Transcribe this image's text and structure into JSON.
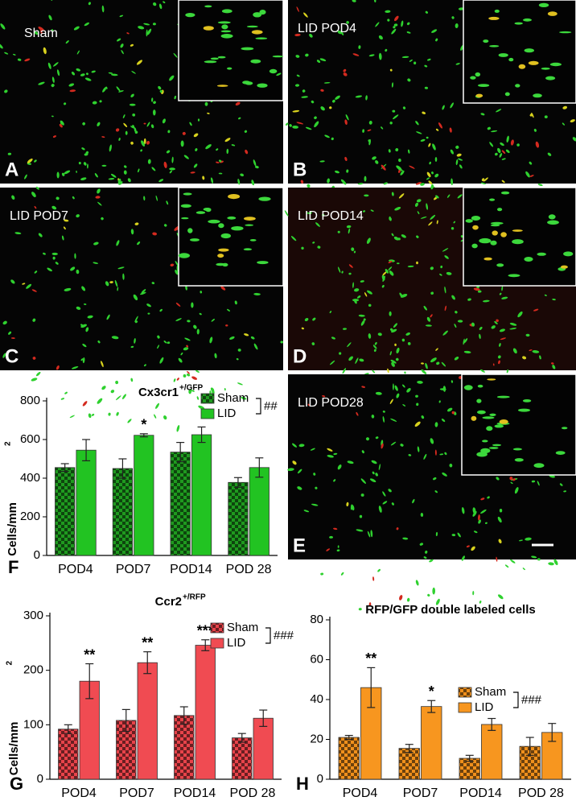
{
  "images": [
    {
      "label": "Sham",
      "letter": "A"
    },
    {
      "label": "LID POD4",
      "letter": "B"
    },
    {
      "label": "LID POD7",
      "letter": "C"
    },
    {
      "label": "LID POD14",
      "letter": "D"
    },
    {
      "label": "LID POD28",
      "letter": "E"
    }
  ],
  "chart_data": [
    {
      "type": "bar",
      "letter": "F",
      "title": "Cx3cr1",
      "title_sup": "+/GFP",
      "ylabel": "Cells/mm",
      "ylabel_sup": "2",
      "categories": [
        "POD4",
        "POD7",
        "POD14",
        "POD 28"
      ],
      "series": [
        {
          "name": "Sham",
          "color": "#1f9a1f",
          "pattern": "checker",
          "values": [
            455,
            450,
            535,
            378
          ],
          "errors": [
            20,
            50,
            50,
            25
          ]
        },
        {
          "name": "LID",
          "color": "#22c322",
          "values": [
            545,
            622,
            625,
            455
          ],
          "errors": [
            55,
            8,
            40,
            50
          ],
          "significance": [
            null,
            "*",
            null,
            null
          ]
        }
      ],
      "legend_note": "##",
      "ylim": [
        0,
        800
      ],
      "yticks": [
        0,
        200,
        400,
        600,
        800
      ]
    },
    {
      "type": "bar",
      "letter": "G",
      "title": "Ccr2",
      "title_sup": "+/RFP",
      "ylabel": "Cells/mm",
      "ylabel_sup": "2",
      "categories": [
        "POD4",
        "POD7",
        "POD14",
        "POD 28"
      ],
      "series": [
        {
          "name": "Sham",
          "color": "#e8434a",
          "pattern": "checker",
          "values": [
            92,
            108,
            117,
            76
          ],
          "errors": [
            8,
            20,
            16,
            8
          ]
        },
        {
          "name": "LID",
          "color": "#f04b52",
          "values": [
            180,
            214,
            246,
            112
          ],
          "errors": [
            32,
            20,
            10,
            15
          ],
          "significance": [
            "**",
            "**",
            "***",
            null
          ]
        }
      ],
      "legend_note": "###",
      "ylim": [
        0,
        300
      ],
      "yticks": [
        0,
        100,
        200,
        300
      ]
    },
    {
      "type": "bar",
      "letter": "H",
      "title": "RFP/GFP double labeled cells",
      "categories": [
        "POD4",
        "POD7",
        "POD14",
        "POD 28"
      ],
      "series": [
        {
          "name": "Sham",
          "color": "#f0901c",
          "pattern": "checker",
          "values": [
            21,
            15.5,
            10.5,
            16.5
          ],
          "errors": [
            1,
            2,
            1.5,
            4.5
          ]
        },
        {
          "name": "LID",
          "color": "#f7961f",
          "values": [
            46,
            36.5,
            27.5,
            23.5
          ],
          "errors": [
            10,
            3,
            3,
            4.5
          ],
          "significance": [
            "**",
            "*",
            null,
            null
          ]
        }
      ],
      "legend_note": "###",
      "ylim": [
        0,
        80
      ],
      "yticks": [
        0,
        20,
        40,
        60,
        80
      ]
    }
  ]
}
